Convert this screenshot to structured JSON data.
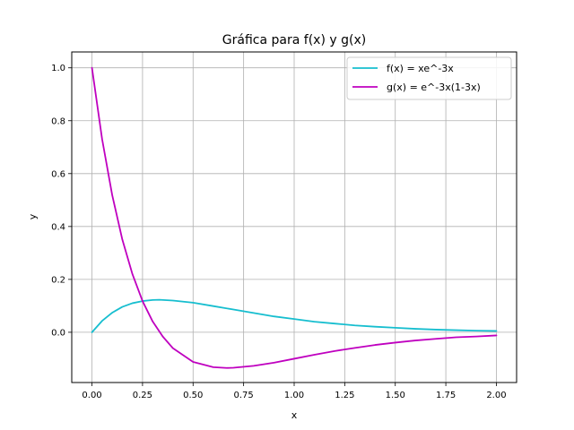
{
  "chart_data": {
    "type": "line",
    "title": "Gráfica para f(x) y g(x)",
    "xlabel": "x",
    "ylabel": "y",
    "xlim": [
      -0.1,
      2.1
    ],
    "ylim": [
      -0.19,
      1.06
    ],
    "xticks": [
      0.0,
      0.25,
      0.5,
      0.75,
      1.0,
      1.25,
      1.5,
      1.75,
      2.0
    ],
    "xtick_labels": [
      "0.00",
      "0.25",
      "0.50",
      "0.75",
      "1.00",
      "1.25",
      "1.50",
      "1.75",
      "2.00"
    ],
    "yticks": [
      0.0,
      0.2,
      0.4,
      0.6,
      0.8,
      1.0
    ],
    "ytick_labels": [
      "0.0",
      "0.2",
      "0.4",
      "0.6",
      "0.8",
      "1.0"
    ],
    "grid": true,
    "legend_position": "top-right",
    "series": [
      {
        "name": "f(x) = xe^-3x",
        "color": "#17becf",
        "x": [
          0.0,
          0.05,
          0.1,
          0.15,
          0.2,
          0.25,
          0.3,
          0.333,
          0.4,
          0.5,
          0.6,
          0.7,
          0.8,
          0.9,
          1.0,
          1.1,
          1.2,
          1.3,
          1.4,
          1.5,
          1.6,
          1.7,
          1.8,
          1.9,
          2.0
        ],
        "y": [
          0.0,
          0.043,
          0.074,
          0.096,
          0.11,
          0.118,
          0.122,
          0.123,
          0.12,
          0.112,
          0.099,
          0.086,
          0.073,
          0.06,
          0.05,
          0.04,
          0.033,
          0.026,
          0.021,
          0.017,
          0.013,
          0.01,
          0.008,
          0.006,
          0.005
        ]
      },
      {
        "name": "g(x) = e^-3x(1-3x)",
        "color": "#bf00bf",
        "x": [
          0.0,
          0.05,
          0.1,
          0.15,
          0.2,
          0.25,
          0.3,
          0.35,
          0.4,
          0.5,
          0.6,
          0.667,
          0.7,
          0.8,
          0.9,
          1.0,
          1.1,
          1.2,
          1.3,
          1.4,
          1.5,
          1.6,
          1.7,
          1.8,
          1.9,
          2.0
        ],
        "y": [
          1.0,
          0.731,
          0.519,
          0.351,
          0.22,
          0.118,
          0.041,
          -0.016,
          -0.06,
          -0.112,
          -0.132,
          -0.135,
          -0.134,
          -0.127,
          -0.115,
          -0.1,
          -0.085,
          -0.071,
          -0.059,
          -0.048,
          -0.039,
          -0.031,
          -0.025,
          -0.019,
          -0.016,
          -0.012
        ]
      }
    ]
  }
}
